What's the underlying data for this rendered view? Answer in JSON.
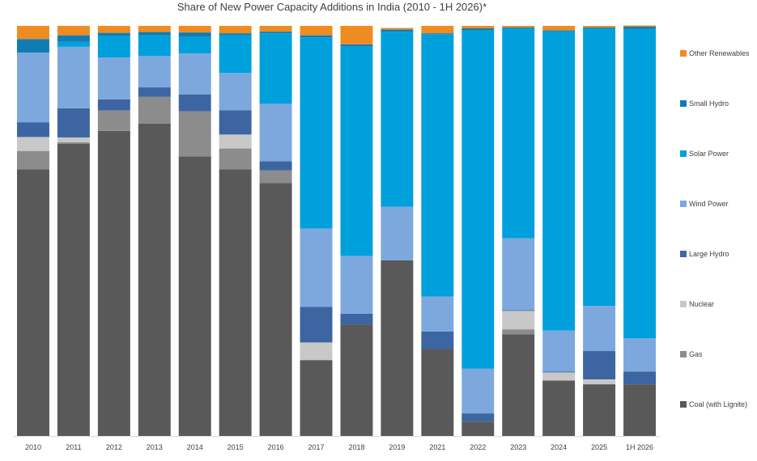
{
  "chart_data": {
    "type": "bar",
    "stacked": true,
    "title": "Share of New Power Capacity Additions in India (2010 - 1H 2026)*",
    "xlabel": "",
    "ylabel": "",
    "ylim": [
      0,
      1
    ],
    "grid": false,
    "legend_position": "right",
    "categories": [
      "2010",
      "2011",
      "2012",
      "2013",
      "2014",
      "2015",
      "2016",
      "2017",
      "2018",
      "2019",
      "2021",
      "2022",
      "2023",
      "2024",
      "2025",
      "1H 2026"
    ],
    "series": [
      {
        "name": "Coal (with Lignite)",
        "color": "#595959",
        "values": [
          0.65,
          0.712,
          0.744,
          0.762,
          0.682,
          0.65,
          0.617,
          0.185,
          0.272,
          0.428,
          0.212,
          0.035,
          0.248,
          0.134,
          0.126,
          0.126
        ]
      },
      {
        "name": "Gas",
        "color": "#8c8c8c",
        "values": [
          0.045,
          0.004,
          0.05,
          0.065,
          0.11,
          0.051,
          0.031,
          0.0,
          0.0,
          0.0,
          0.0,
          0.0,
          0.012,
          0.002,
          0.0,
          0.0
        ]
      },
      {
        "name": "Nuclear",
        "color": "#c8c8c8",
        "values": [
          0.034,
          0.012,
          0.0,
          0.0,
          0.0,
          0.034,
          0.0,
          0.043,
          0.0,
          0.0,
          0.0,
          0.0,
          0.045,
          0.019,
          0.012,
          0.0
        ]
      },
      {
        "name": "Large Hydro",
        "color": "#3c65a2",
        "values": [
          0.036,
          0.071,
          0.027,
          0.023,
          0.041,
          0.059,
          0.022,
          0.087,
          0.026,
          0.0,
          0.043,
          0.02,
          0.002,
          0.002,
          0.069,
          0.031
        ]
      },
      {
        "name": "Wind Power",
        "color": "#7da8dd",
        "values": [
          0.17,
          0.15,
          0.102,
          0.077,
          0.1,
          0.091,
          0.14,
          0.191,
          0.141,
          0.131,
          0.085,
          0.109,
          0.175,
          0.1,
          0.11,
          0.081
        ]
      },
      {
        "name": "Solar Power",
        "color": "#00a0dc",
        "values": [
          0.0,
          0.012,
          0.052,
          0.05,
          0.04,
          0.092,
          0.172,
          0.466,
          0.511,
          0.427,
          0.64,
          0.825,
          0.512,
          0.73,
          0.677,
          0.755
        ]
      },
      {
        "name": "Small Hydro",
        "color": "#0f7cb3",
        "values": [
          0.033,
          0.016,
          0.008,
          0.008,
          0.011,
          0.005,
          0.004,
          0.005,
          0.005,
          0.005,
          0.002,
          0.005,
          0.002,
          0.002,
          0.002,
          0.005
        ]
      },
      {
        "name": "Other Renewables",
        "color": "#ee8c22",
        "values": [
          0.032,
          0.023,
          0.017,
          0.015,
          0.016,
          0.018,
          0.014,
          0.023,
          0.045,
          0.004,
          0.018,
          0.006,
          0.004,
          0.011,
          0.004,
          0.003
        ]
      }
    ]
  }
}
